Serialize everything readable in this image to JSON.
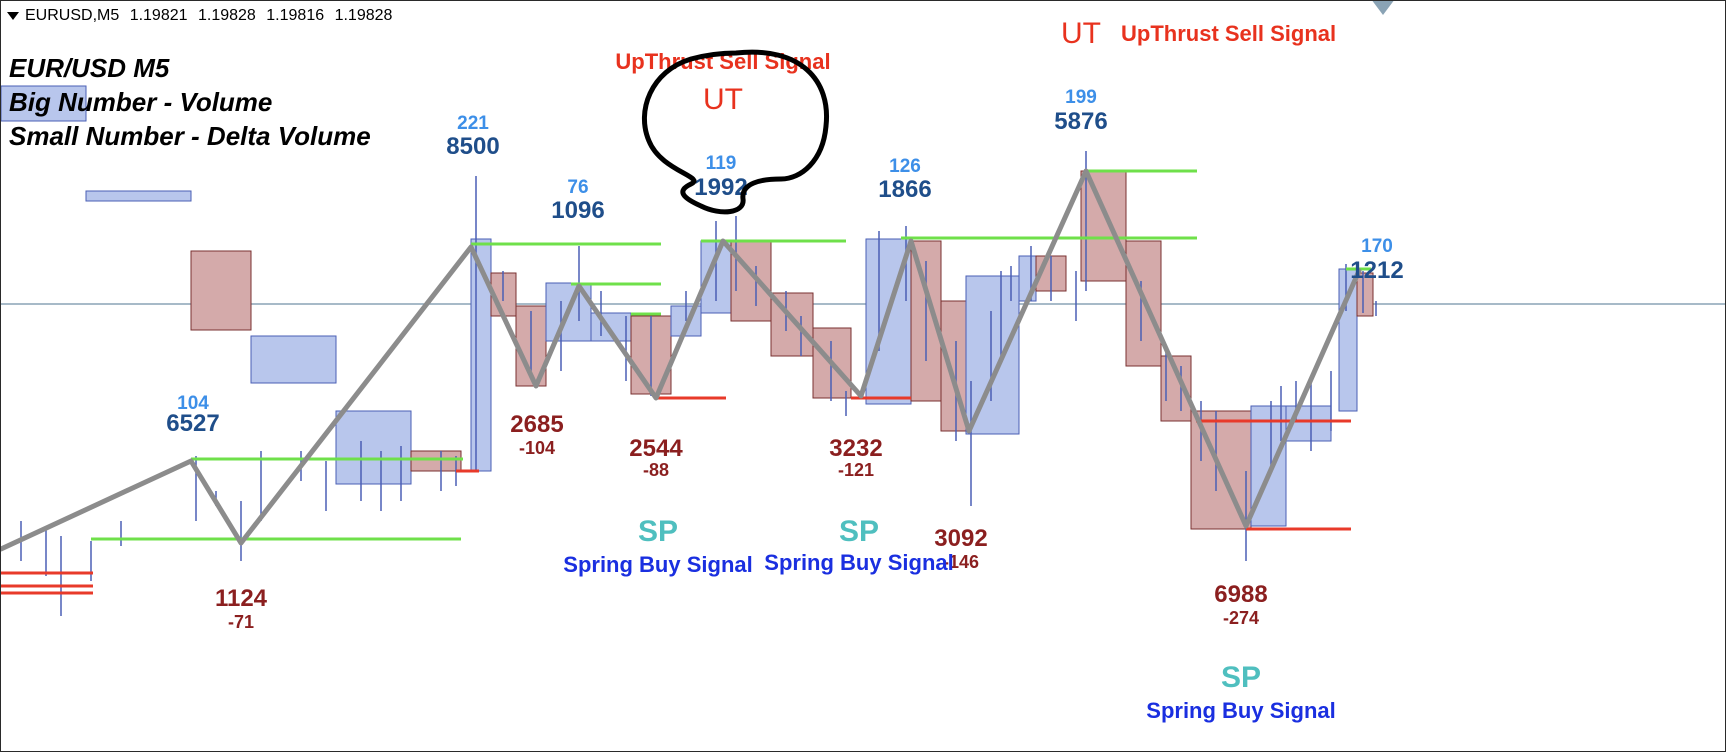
{
  "header": {
    "symbol": "EURUSD,M5",
    "open": "1.19821",
    "high": "1.19828",
    "low": "1.19816",
    "close": "1.19828"
  },
  "legend": {
    "line1": "EUR/USD M5",
    "line2": "Big Number - Volume",
    "line3": "Small Number - Delta Volume"
  },
  "colors": {
    "bull_fill": "#b8c6ec",
    "bull_edge": "#4a5fb5",
    "bear_fill": "#d4aaaa",
    "bear_edge": "#7a3030",
    "zigzag": "#8c8c8c",
    "support": "#6fe04a",
    "resistance": "#e83a2a",
    "volume_blue": "#1f4e8a",
    "delta_blue": "#3d8fe8",
    "volume_red": "#8b1f1f",
    "signal_red": "#e8321e",
    "sp_teal": "#4fbfbf",
    "spring_blue": "#1a2fe0",
    "annotation": "#000000",
    "grid": "#8aa3b5"
  },
  "chart_data": {
    "type": "candlestick",
    "title": "EUR/USD M5",
    "volume_labels_high": [
      {
        "volume": "6527",
        "delta": "104"
      },
      {
        "volume": "8500",
        "delta": "221"
      },
      {
        "volume": "1096",
        "delta": "76"
      },
      {
        "volume": "1992",
        "delta": "119"
      },
      {
        "volume": "1866",
        "delta": "126"
      },
      {
        "volume": "5876",
        "delta": "199"
      },
      {
        "volume": "1212",
        "delta": "170"
      }
    ],
    "volume_labels_low": [
      {
        "volume": "1124",
        "delta": "-71"
      },
      {
        "volume": "2685",
        "delta": "-104"
      },
      {
        "volume": "2544",
        "delta": "-88"
      },
      {
        "volume": "3232",
        "delta": "-121"
      },
      {
        "volume": "3092",
        "delta": "-146"
      },
      {
        "volume": "6988",
        "delta": "-274"
      }
    ],
    "signals": {
      "ut_label": "UT",
      "ut_text": "UpThrust Sell Signal",
      "sp_label": "SP",
      "sp_text": "Spring Buy Signal"
    }
  }
}
